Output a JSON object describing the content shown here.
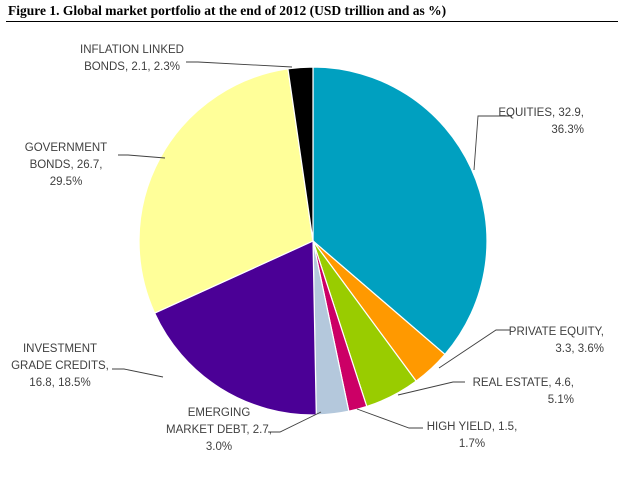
{
  "title": "Figure 1. Global market portfolio at the end of 2012 (USD trillion and as %)",
  "chart_data": {
    "type": "pie",
    "title": "Figure 1. Global market portfolio at the end of 2012 (USD trillion and as %)",
    "start_angle_deg": 0,
    "direction": "clockwise",
    "slices": [
      {
        "name": "EQUITIES",
        "value": 32.9,
        "percent": 36.3,
        "color": "#00A0C0",
        "label_lines": [
          "EQUITIES, 32.9,",
          "36.3%"
        ]
      },
      {
        "name": "PRIVATE EQUITY",
        "value": 3.3,
        "percent": 3.6,
        "color": "#FF9900",
        "label_lines": [
          "PRIVATE EQUITY,",
          "3.3, 3.6%"
        ]
      },
      {
        "name": "REAL ESTATE",
        "value": 4.6,
        "percent": 5.1,
        "color": "#99CC00",
        "label_lines": [
          "REAL ESTATE, 4.6,",
          "5.1%"
        ]
      },
      {
        "name": "HIGH YIELD",
        "value": 1.5,
        "percent": 1.7,
        "color": "#CC0066",
        "label_lines": [
          "HIGH YIELD, 1.5,",
          "1.7%"
        ]
      },
      {
        "name": "EMERGING MARKET DEBT",
        "value": 2.7,
        "percent": 3.0,
        "color": "#B4C8DC",
        "label_lines": [
          "EMERGING",
          "MARKET DEBT, 2.7,",
          "3.0%"
        ]
      },
      {
        "name": "INVESTMENT GRADE CREDITS",
        "value": 16.8,
        "percent": 18.5,
        "color": "#4B0096",
        "label_lines": [
          "INVESTMENT",
          "GRADE CREDITS,",
          "16.8, 18.5%"
        ]
      },
      {
        "name": "GOVERNMENT BONDS",
        "value": 26.7,
        "percent": 29.5,
        "color": "#FFFF99",
        "label_lines": [
          "GOVERNMENT",
          "BONDS, 26.7,",
          "29.5%"
        ]
      },
      {
        "name": "INFLATION LINKED BONDS",
        "value": 2.1,
        "percent": 2.3,
        "color": "#000000",
        "label_lines": [
          "INFLATION LINKED",
          "BONDS, 2.1, 2.3%"
        ]
      }
    ]
  }
}
